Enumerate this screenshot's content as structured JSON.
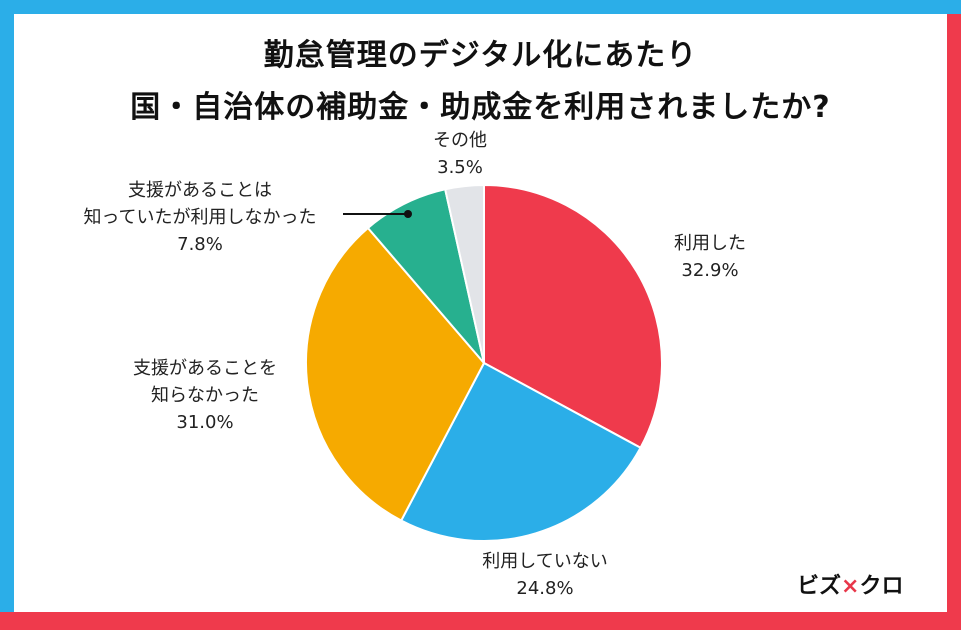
{
  "title": {
    "line1": "勤怠管理のデジタル化にあたり",
    "line2": "国・自治体の補助金・助成金を利用されましたか?"
  },
  "logo": {
    "prefix": "ビズ",
    "mark": "×",
    "suffix": "クロ"
  },
  "colors": {
    "border_blue": "#2baee8",
    "border_red": "#ef3a4c"
  },
  "chart_data": {
    "type": "pie",
    "start_angle_deg": 0,
    "direction": "clockwise",
    "slices": [
      {
        "label": "利用した",
        "value": 32.9,
        "value_text": "32.9%",
        "color": "#ef3a4c"
      },
      {
        "label": "利用していない",
        "value": 24.8,
        "value_text": "24.8%",
        "color": "#2baee8"
      },
      {
        "label": "支援があることを知らなかった",
        "label_lines": [
          "支援があることを",
          "知らなかった"
        ],
        "value": 31.0,
        "value_text": "31.0%",
        "color": "#f6aa00"
      },
      {
        "label": "支援があることは知っていたが利用しなかった",
        "label_lines": [
          "支援があることは",
          "知っていたが利用しなかった"
        ],
        "value": 7.8,
        "value_text": "7.8%",
        "color": "#27b08f"
      },
      {
        "label": "その他",
        "value": 3.5,
        "value_text": "3.5%",
        "color": "#e2e4e8"
      }
    ]
  }
}
